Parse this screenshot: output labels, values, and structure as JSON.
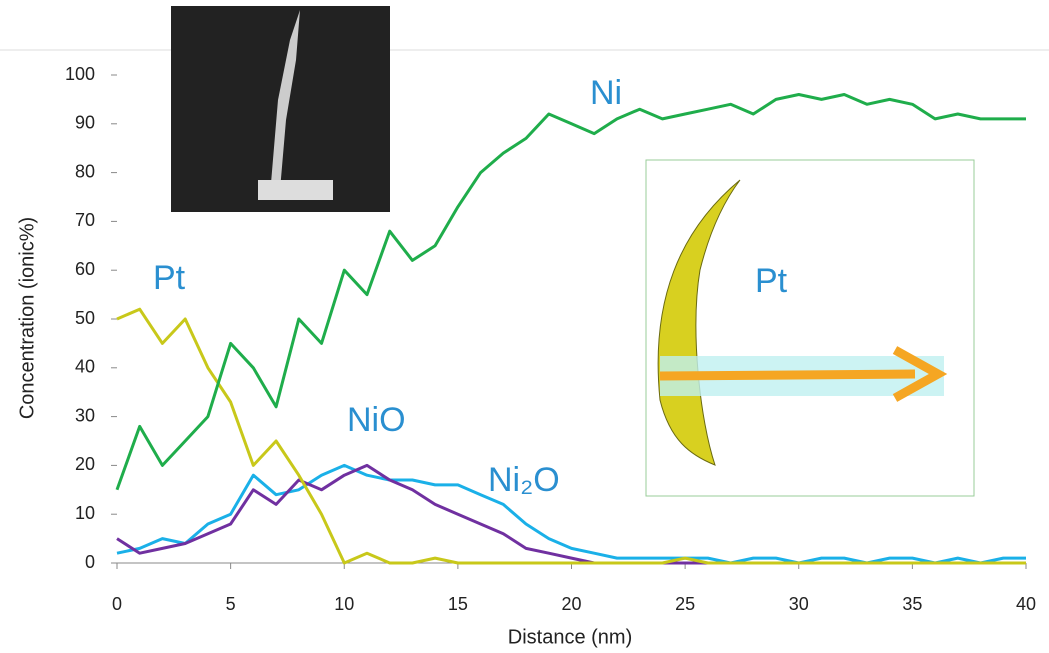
{
  "chart_data": {
    "type": "line",
    "x_label": "Distance (nm)",
    "y_label": "Concentration (ionic%)",
    "x": [
      0,
      1,
      2,
      3,
      4,
      5,
      6,
      7,
      8,
      9,
      10,
      11,
      12,
      13,
      14,
      15,
      16,
      17,
      18,
      19,
      20,
      21,
      22,
      23,
      24,
      25,
      26,
      27,
      28,
      29,
      30,
      31,
      32,
      33,
      34,
      35,
      36,
      37,
      38,
      39,
      40
    ],
    "series": [
      {
        "name": "Ni",
        "color": "#1fad4b",
        "values": [
          15,
          28,
          20,
          25,
          30,
          45,
          40,
          32,
          50,
          45,
          60,
          55,
          68,
          62,
          65,
          73,
          80,
          84,
          87,
          92,
          90,
          88,
          91,
          93,
          91,
          92,
          93,
          94,
          92,
          95,
          96,
          95,
          96,
          94,
          95,
          94,
          91,
          92,
          91,
          91,
          91
        ]
      },
      {
        "name": "Pt",
        "color": "#c8c81a",
        "values": [
          50,
          52,
          45,
          50,
          40,
          33,
          20,
          25,
          18,
          10,
          0,
          2,
          0,
          0,
          1,
          0,
          0,
          0,
          0,
          0,
          0,
          0,
          0,
          0,
          0,
          1,
          0,
          0,
          0,
          0,
          0,
          0,
          0,
          0,
          0,
          0,
          0,
          0,
          0,
          0,
          0
        ]
      },
      {
        "name": "NiO",
        "color": "#7030a0",
        "values": [
          5,
          2,
          3,
          4,
          6,
          8,
          15,
          12,
          17,
          15,
          18,
          20,
          17,
          15,
          12,
          10,
          8,
          6,
          3,
          2,
          1,
          0,
          0,
          0,
          0,
          0,
          0,
          0,
          0,
          0,
          0,
          0,
          0,
          0,
          0,
          0,
          0,
          0,
          0,
          0,
          0
        ]
      },
      {
        "name": "Ni₂O",
        "color": "#1ab0e8",
        "values": [
          2,
          3,
          5,
          4,
          8,
          10,
          18,
          14,
          15,
          18,
          20,
          18,
          17,
          17,
          16,
          16,
          14,
          12,
          8,
          5,
          3,
          2,
          1,
          1,
          1,
          1,
          1,
          0,
          1,
          1,
          0,
          1,
          1,
          0,
          1,
          1,
          0,
          1,
          0,
          1,
          1
        ]
      }
    ],
    "annotations": [
      "Pt"
    ],
    "xlim": [
      0,
      40
    ],
    "xticks": [
      0,
      5,
      10,
      15,
      20,
      25,
      30,
      35,
      40
    ],
    "ylim": [
      0,
      100
    ],
    "yticks": [
      0,
      10,
      20,
      30,
      40,
      50,
      60,
      70,
      80,
      90,
      100
    ]
  }
}
